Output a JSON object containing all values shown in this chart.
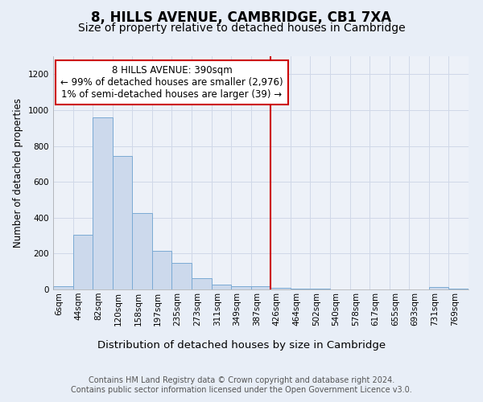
{
  "title": "8, HILLS AVENUE, CAMBRIDGE, CB1 7XA",
  "subtitle": "Size of property relative to detached houses in Cambridge",
  "xlabel": "Distribution of detached houses by size in Cambridge",
  "ylabel": "Number of detached properties",
  "categories": [
    "6sqm",
    "44sqm",
    "82sqm",
    "120sqm",
    "158sqm",
    "197sqm",
    "235sqm",
    "273sqm",
    "311sqm",
    "349sqm",
    "387sqm",
    "426sqm",
    "464sqm",
    "502sqm",
    "540sqm",
    "578sqm",
    "617sqm",
    "655sqm",
    "693sqm",
    "731sqm",
    "769sqm"
  ],
  "values": [
    20,
    305,
    960,
    745,
    425,
    215,
    150,
    65,
    25,
    20,
    20,
    8,
    5,
    3,
    2,
    2,
    2,
    2,
    2,
    13,
    5
  ],
  "bar_color": "#ccd9ec",
  "bar_edge_color": "#7aaad4",
  "highlight_index": 10,
  "highlight_line_color": "#cc0000",
  "annotation_text": "8 HILLS AVENUE: 390sqm\n← 99% of detached houses are smaller (2,976)\n1% of semi-detached houses are larger (39) →",
  "annotation_box_color": "#ffffff",
  "annotation_box_edge_color": "#cc0000",
  "ylim": [
    0,
    1300
  ],
  "yticks": [
    0,
    200,
    400,
    600,
    800,
    1000,
    1200
  ],
  "background_color": "#e8eef7",
  "plot_background_color": "#edf1f8",
  "grid_color": "#d0d8e8",
  "footnote": "Contains HM Land Registry data © Crown copyright and database right 2024.\nContains public sector information licensed under the Open Government Licence v3.0.",
  "title_fontsize": 12,
  "subtitle_fontsize": 10,
  "xlabel_fontsize": 9.5,
  "ylabel_fontsize": 8.5,
  "tick_fontsize": 7.5,
  "annotation_fontsize": 8.5,
  "footnote_fontsize": 7
}
